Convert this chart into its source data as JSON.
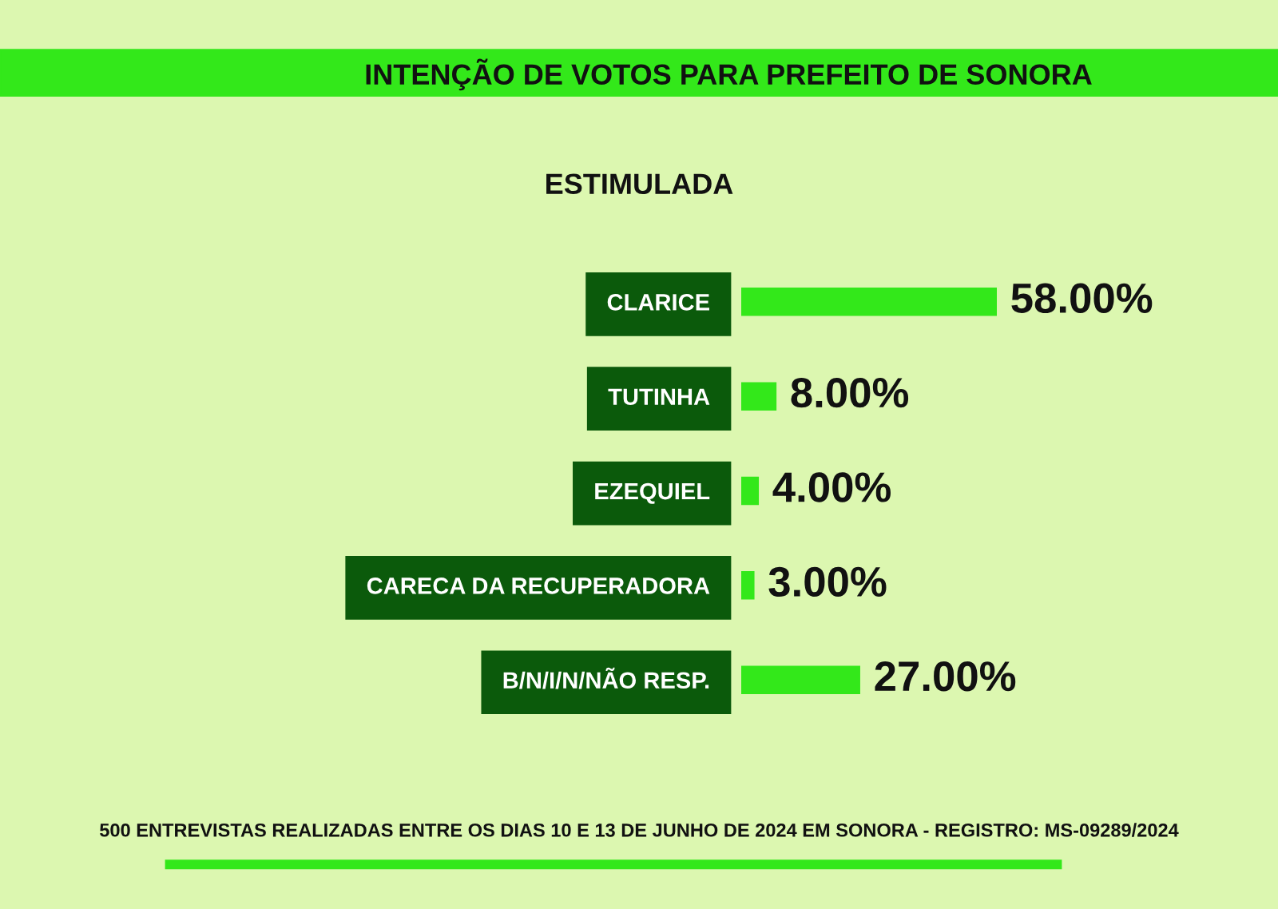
{
  "chart_data": {
    "type": "bar",
    "orientation": "horizontal",
    "title": "INTENÇÃO DE VOTOS PARA PREFEITO DE SONORA",
    "subtitle": "ESTIMULADA",
    "categories": [
      "CLARICE",
      "TUTINHA",
      "EZEQUIEL",
      "CARECA DA RECUPERADORA",
      "B/N/I/N/NÃO RESP."
    ],
    "values": [
      58,
      8,
      4,
      3,
      27
    ],
    "value_labels": [
      "58.00%",
      "8.00%",
      "4.00%",
      "3.00%",
      "27.00%"
    ],
    "color": "#33e81a",
    "annotations": [
      "500 ENTREVISTAS REALIZADAS ENTRE OS DIAS 10 E 13 DE JUNHO DE 2024 EM SONORA - REGISTRO: MS-09289/2024"
    ]
  }
}
